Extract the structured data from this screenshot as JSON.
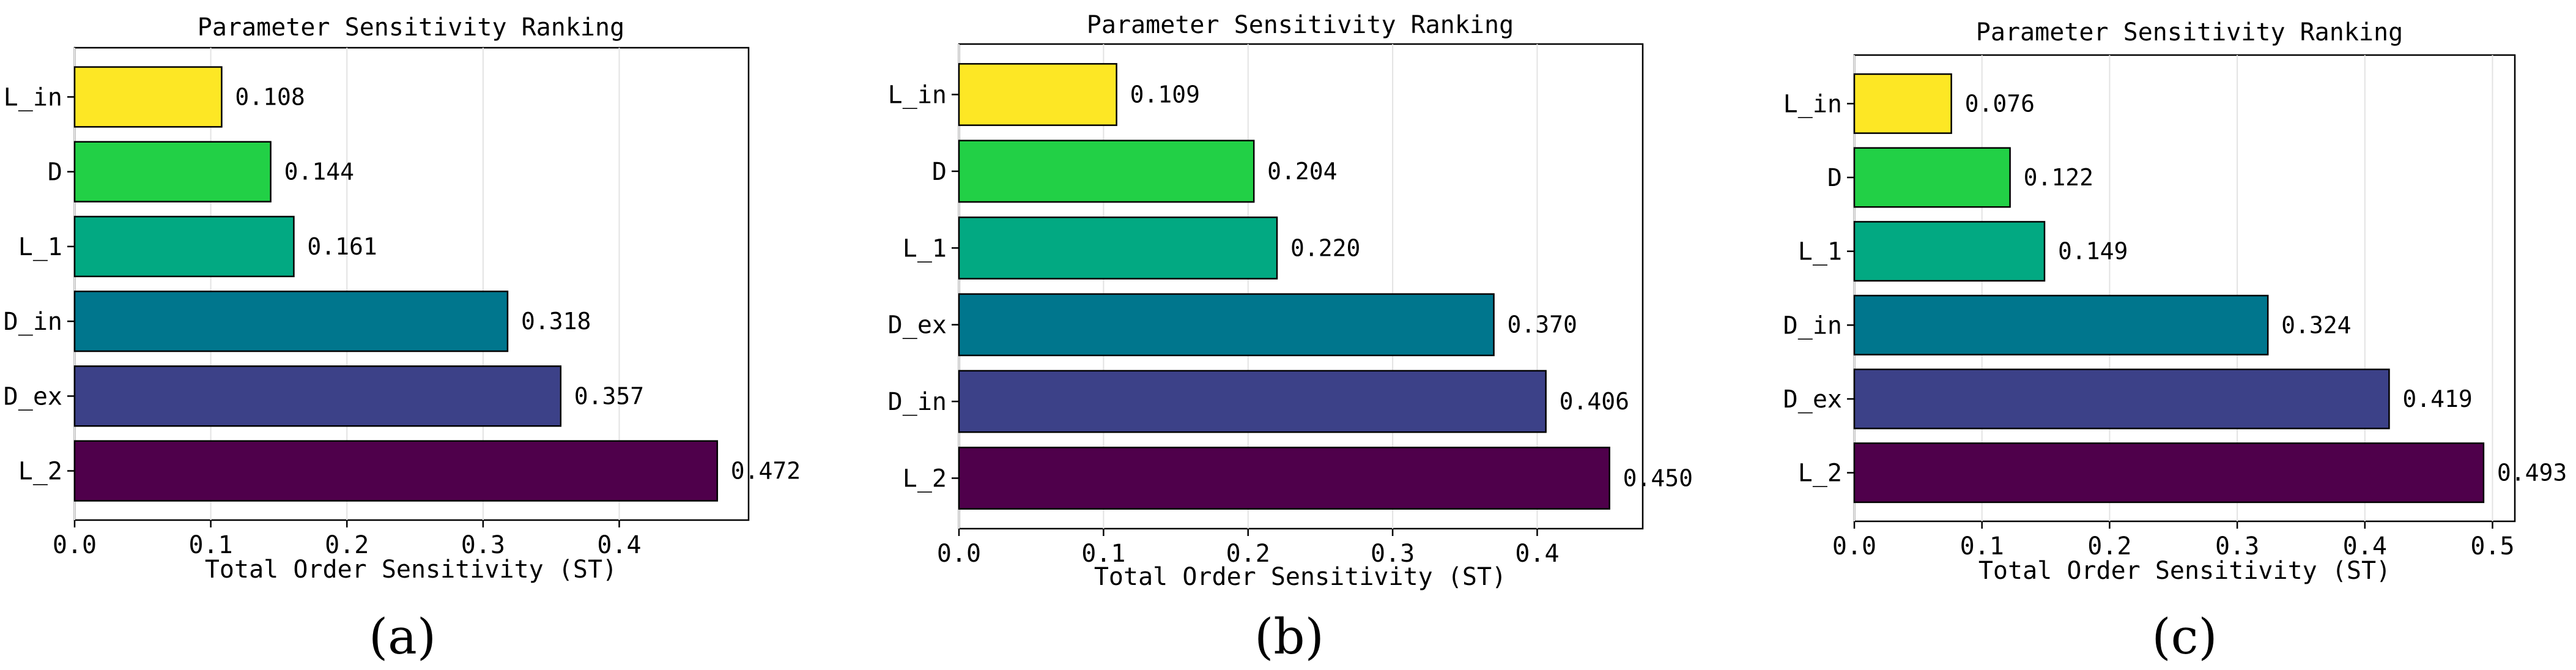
{
  "chart_data": [
    {
      "type": "bar",
      "orientation": "horizontal",
      "panel_label": "(a)",
      "title": "Parameter Sensitivity Ranking",
      "xlabel": "Total Order Sensitivity (ST)",
      "ylabel": "",
      "categories": [
        "L_in",
        "D",
        "L_1",
        "D_in",
        "D_ex",
        "L_2"
      ],
      "values": [
        0.108,
        0.144,
        0.161,
        0.318,
        0.357,
        0.472
      ],
      "value_labels": [
        "0.108",
        "0.144",
        "0.161",
        "0.318",
        "0.357",
        "0.472"
      ],
      "colors": [
        "#fde725",
        "#22d046",
        "#02a982",
        "#00768d",
        "#3c4188",
        "#4f004b"
      ],
      "xlim": [
        0,
        0.495
      ],
      "xticks": [
        0.0,
        0.1,
        0.2,
        0.3,
        0.4
      ],
      "xtick_labels": [
        "0.0",
        "0.1",
        "0.2",
        "0.3",
        "0.4"
      ],
      "grid": "vertical"
    },
    {
      "type": "bar",
      "orientation": "horizontal",
      "panel_label": "(b)",
      "title": "Parameter Sensitivity Ranking",
      "xlabel": "Total Order Sensitivity (ST)",
      "ylabel": "",
      "categories": [
        "L_in",
        "D",
        "L_1",
        "D_ex",
        "D_in",
        "L_2"
      ],
      "values": [
        0.109,
        0.204,
        0.22,
        0.37,
        0.406,
        0.45
      ],
      "value_labels": [
        "0.109",
        "0.204",
        "0.220",
        "0.370",
        "0.406",
        "0.450"
      ],
      "colors": [
        "#fde725",
        "#22d046",
        "#02a982",
        "#00768d",
        "#3c4188",
        "#4f004b"
      ],
      "xlim": [
        0,
        0.473
      ],
      "xticks": [
        0.0,
        0.1,
        0.2,
        0.3,
        0.4
      ],
      "xtick_labels": [
        "0.0",
        "0.1",
        "0.2",
        "0.3",
        "0.4"
      ],
      "grid": "vertical"
    },
    {
      "type": "bar",
      "orientation": "horizontal",
      "panel_label": "(c)",
      "title": "Parameter Sensitivity Ranking",
      "xlabel": "Total Order Sensitivity (ST)",
      "ylabel": "",
      "categories": [
        "L_in",
        "D",
        "L_1",
        "D_in",
        "D_ex",
        "L_2"
      ],
      "values": [
        0.076,
        0.122,
        0.149,
        0.324,
        0.419,
        0.493
      ],
      "value_labels": [
        "0.076",
        "0.122",
        "0.149",
        "0.324",
        "0.419",
        "0.493"
      ],
      "colors": [
        "#fde725",
        "#22d046",
        "#02a982",
        "#00768d",
        "#3c4188",
        "#4f004b"
      ],
      "xlim": [
        0,
        0.5175
      ],
      "xticks": [
        0.0,
        0.1,
        0.2,
        0.3,
        0.4,
        0.5
      ],
      "xtick_labels": [
        "0.0",
        "0.1",
        "0.2",
        "0.3",
        "0.4",
        "0.5"
      ],
      "grid": "vertical"
    }
  ]
}
